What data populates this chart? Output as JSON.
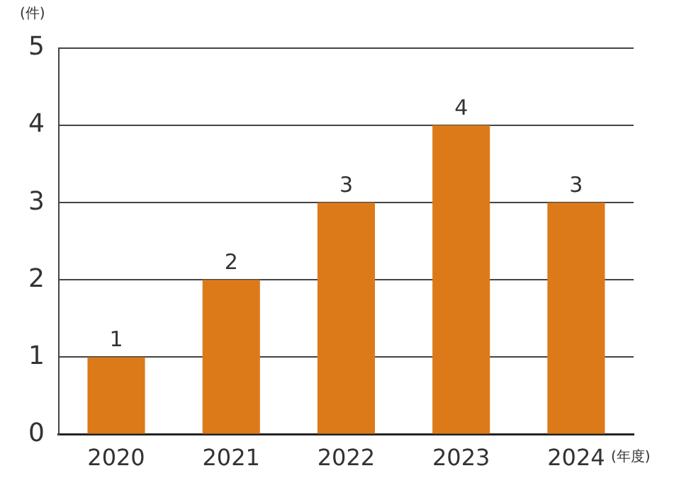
{
  "chart_data": {
    "type": "bar",
    "ylabel": "(件)",
    "xlabel": "(年度)",
    "categories": [
      "2020",
      "2021",
      "2022",
      "2023",
      "2024"
    ],
    "values": [
      1,
      2,
      3,
      4,
      3
    ],
    "color": "#dc7a1a",
    "ylim": [
      0,
      5
    ],
    "yticks": [
      0,
      1,
      2,
      3,
      4,
      5
    ],
    "grid": "y",
    "data_labels": true
  }
}
